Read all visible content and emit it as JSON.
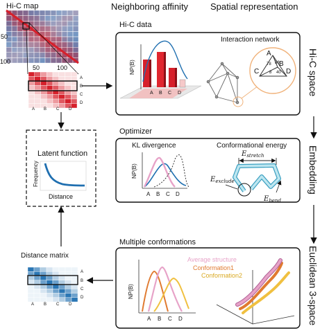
{
  "top": {
    "hic_map_label": "Hi-C map",
    "heading_affinity": "Neighboring affinity",
    "heading_spatial": "Spatial representation",
    "map_ticks": [
      "50",
      "100",
      "50",
      "100"
    ]
  },
  "matrix_labels": {
    "rows": [
      "A",
      "B",
      "C",
      "D"
    ],
    "cols": [
      "A",
      "B",
      "C",
      "D"
    ]
  },
  "latent": {
    "title": "Latent function",
    "ylabel": "Frequency",
    "xlabel": "Distance"
  },
  "distance_matrix": {
    "title": "Distance matrix",
    "rows": [
      "A",
      "B",
      "C",
      "D"
    ],
    "cols": [
      "A",
      "B",
      "C",
      "D"
    ]
  },
  "panel_hic": {
    "title": "Hi-C data",
    "ylabel": "NP(B)",
    "bar_labels": [
      "A",
      "B",
      "C",
      "D"
    ],
    "network_title": "Interaction network",
    "net_nodes": [
      "A",
      "B",
      "C",
      "D"
    ],
    "net_weights": [
      "78",
      "86",
      "40",
      "8"
    ]
  },
  "panel_opt": {
    "title": "Optimizer",
    "kl_title": "KL divergence",
    "ylabel": "NP(B)",
    "xticks": [
      "A",
      "B",
      "C",
      "D"
    ],
    "energy_title": "Conformational energy",
    "e_stretch": "E",
    "e_stretch_sub": "stretch",
    "e_exclude": "E",
    "e_exclude_sub": "exclude",
    "e_bend": "E",
    "e_bend_sub": "bend"
  },
  "panel_conf": {
    "title": "Multiple conformations",
    "ylabel": "NP(B)",
    "xticks": [
      "A",
      "B",
      "C",
      "D"
    ],
    "legend": [
      "Average structure",
      "Conformation1",
      "Conformation2"
    ]
  },
  "side_labels": [
    "Hi-C space",
    "Embedding",
    "Euclidean 3-space"
  ],
  "colors": {
    "red": "#d6202b",
    "blue": "#1f6fb0",
    "pink": "#e7a3c8",
    "orange": "#e07a30",
    "yellow": "#f0c040",
    "cyan": "#9fd6e6"
  }
}
